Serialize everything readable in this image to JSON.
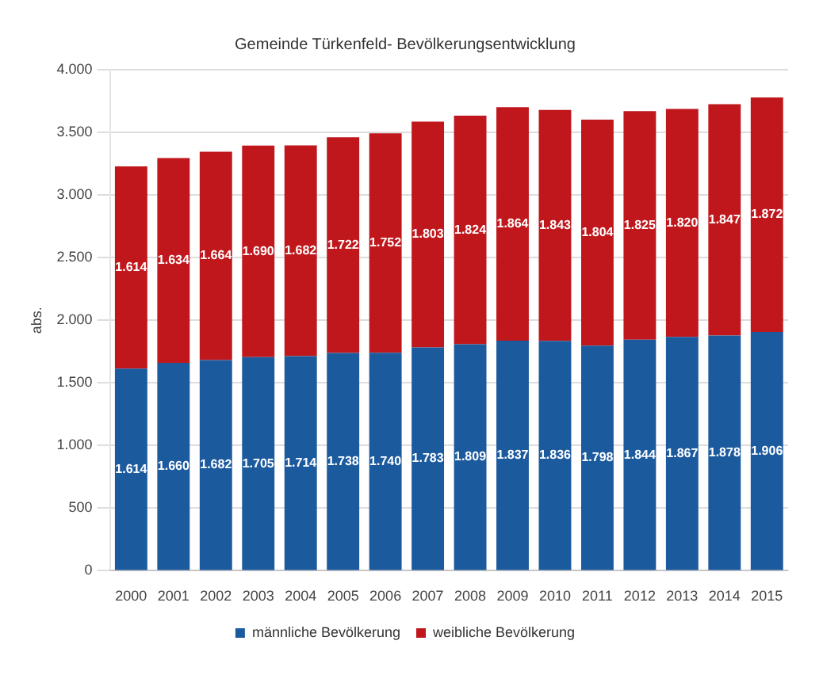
{
  "chart_data": {
    "type": "bar",
    "title": "Gemeinde Türkenfeld- Bevölkerungsentwicklung",
    "ylabel": "abs.",
    "categories": [
      "2000",
      "2001",
      "2002",
      "2003",
      "2004",
      "2005",
      "2006",
      "2007",
      "2008",
      "2009",
      "2010",
      "2011",
      "2012",
      "2013",
      "2014",
      "2015"
    ],
    "series": [
      {
        "name": "männliche Bevölkerung",
        "color": "#1c5a9e",
        "values": [
          1614,
          1660,
          1682,
          1705,
          1714,
          1738,
          1740,
          1783,
          1809,
          1837,
          1836,
          1798,
          1844,
          1867,
          1878,
          1906
        ],
        "value_labels": [
          "1.614",
          "1.660",
          "1.682",
          "1.705",
          "1.714",
          "1.738",
          "1.740",
          "1.783",
          "1.809",
          "1.837",
          "1.836",
          "1.798",
          "1.844",
          "1.867",
          "1.878",
          "1.906"
        ]
      },
      {
        "name": "weibliche Bevölkerung",
        "color": "#c0171c",
        "values": [
          1614,
          1634,
          1664,
          1690,
          1682,
          1722,
          1752,
          1803,
          1824,
          1864,
          1843,
          1804,
          1825,
          1820,
          1847,
          1872
        ],
        "value_labels": [
          "1.614",
          "1.634",
          "1.664",
          "1.690",
          "1.682",
          "1.722",
          "1.752",
          "1.803",
          "1.824",
          "1.864",
          "1.843",
          "1.804",
          "1.825",
          "1.820",
          "1.847",
          "1.872"
        ]
      }
    ],
    "stacked": true,
    "ylim": [
      0,
      4000
    ],
    "yticks": [
      {
        "value": 0,
        "label": "0"
      },
      {
        "value": 500,
        "label": "500"
      },
      {
        "value": 1000,
        "label": "1.000"
      },
      {
        "value": 1500,
        "label": "1.500"
      },
      {
        "value": 2000,
        "label": "2.000"
      },
      {
        "value": 2500,
        "label": "2.500"
      },
      {
        "value": 3000,
        "label": "3.000"
      },
      {
        "value": 3500,
        "label": "3.500"
      },
      {
        "value": 4000,
        "label": "4.000"
      }
    ],
    "grid": "y",
    "legend": "bottom"
  }
}
